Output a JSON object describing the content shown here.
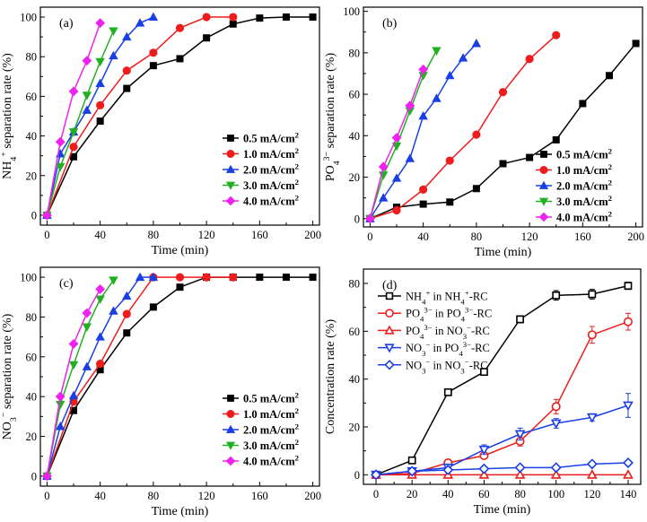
{
  "chart_data": [
    {
      "type": "line",
      "panel": "(a)",
      "xlabel": "Time (min)",
      "ylabel": {
        "pre": "NH",
        "sub": "4",
        "sup": "+",
        "post": " separation rate (%)"
      },
      "xlim": [
        -5,
        205
      ],
      "ylim": [
        -5,
        105
      ],
      "xticks": [
        0,
        40,
        80,
        120,
        160,
        200
      ],
      "yticks": [
        0,
        20,
        40,
        60,
        80,
        100
      ],
      "legend_position": "bottom-right",
      "series": [
        {
          "name": "0.5 mA/cm",
          "unit_sup": "2",
          "color": "#000000",
          "marker": "square",
          "x": [
            0,
            20,
            40,
            60,
            80,
            100,
            120,
            140,
            160,
            180,
            200
          ],
          "y": [
            0,
            29.5,
            47.5,
            64,
            75.5,
            79,
            89.5,
            96.5,
            99.5,
            100,
            100
          ]
        },
        {
          "name": "1.0 mA/cm",
          "unit_sup": "2",
          "color": "#ee1c1c",
          "marker": "circle",
          "x": [
            0,
            20,
            40,
            60,
            80,
            100,
            120,
            140
          ],
          "y": [
            0,
            34.5,
            55.5,
            73,
            82,
            94.5,
            100,
            100
          ]
        },
        {
          "name": "2.0 mA/cm",
          "unit_sup": "2",
          "color": "#1a3fe6",
          "marker": "triangle-up",
          "x": [
            0,
            10,
            20,
            30,
            40,
            50,
            60,
            70,
            80
          ],
          "y": [
            0,
            31,
            42,
            53,
            66.5,
            80.5,
            90,
            97,
            100
          ]
        },
        {
          "name": "3.0 mA/cm",
          "unit_sup": "2",
          "color": "#22b022",
          "marker": "triangle-down",
          "x": [
            0,
            10,
            20,
            30,
            40,
            50
          ],
          "y": [
            0,
            24.5,
            42,
            60.5,
            77.5,
            93
          ]
        },
        {
          "name": "4.0 mA/cm",
          "unit_sup": "2",
          "color": "#ee22ee",
          "marker": "diamond",
          "x": [
            0,
            10,
            20,
            30,
            40
          ],
          "y": [
            0,
            37,
            62.5,
            78,
            97
          ]
        }
      ]
    },
    {
      "type": "line",
      "panel": "(b)",
      "xlabel": "Time (min)",
      "ylabel": {
        "pre": "PO",
        "sub": "4",
        "sup": "3−",
        "post": " separation rate (%)"
      },
      "xlim": [
        -5,
        205
      ],
      "ylim": [
        -4,
        102
      ],
      "xticks": [
        0,
        40,
        80,
        120,
        160,
        200
      ],
      "yticks": [
        0,
        20,
        40,
        60,
        80,
        100
      ],
      "legend_position": "bottom-right",
      "series": [
        {
          "name": "0.5 mA/cm",
          "unit_sup": "2",
          "color": "#000000",
          "marker": "square",
          "x": [
            0,
            20,
            40,
            60,
            80,
            100,
            120,
            140,
            160,
            180,
            200
          ],
          "y": [
            0,
            5.5,
            7,
            8,
            14.5,
            26.5,
            29.5,
            38,
            55.5,
            69,
            84.5
          ]
        },
        {
          "name": "1.0 mA/cm",
          "unit_sup": "2",
          "color": "#ee1c1c",
          "marker": "circle",
          "x": [
            0,
            20,
            40,
            60,
            80,
            100,
            120,
            140
          ],
          "y": [
            0,
            4,
            14,
            28,
            40.5,
            61,
            77,
            88.5
          ]
        },
        {
          "name": "2.0 mA/cm",
          "unit_sup": "2",
          "color": "#1a3fe6",
          "marker": "triangle-up",
          "x": [
            0,
            10,
            20,
            30,
            40,
            50,
            60,
            70,
            80
          ],
          "y": [
            0,
            10,
            19.5,
            29,
            49.5,
            58,
            69,
            77.5,
            84.5
          ]
        },
        {
          "name": "3.0 mA/cm",
          "unit_sup": "2",
          "color": "#22b022",
          "marker": "triangle-down",
          "x": [
            0,
            10,
            20,
            30,
            40,
            50
          ],
          "y": [
            0,
            21,
            35,
            52,
            69,
            81
          ]
        },
        {
          "name": "4.0 mA/cm",
          "unit_sup": "2",
          "color": "#ee22ee",
          "marker": "diamond",
          "x": [
            0,
            10,
            20,
            30,
            40
          ],
          "y": [
            0,
            25,
            39,
            54.5,
            72
          ]
        }
      ]
    },
    {
      "type": "line",
      "panel": "(c)",
      "xlabel": "Time (min)",
      "ylabel": {
        "pre": "NO",
        "sub": "3",
        "sup": "−",
        "post": " separation rate (%)"
      },
      "xlim": [
        -5,
        205
      ],
      "ylim": [
        -5,
        105
      ],
      "xticks": [
        0,
        40,
        80,
        120,
        160,
        200
      ],
      "yticks": [
        0,
        20,
        40,
        60,
        80,
        100
      ],
      "legend_position": "bottom-right",
      "series": [
        {
          "name": "0.5 mA/cm",
          "unit_sup": "2",
          "color": "#000000",
          "marker": "square",
          "x": [
            0,
            20,
            40,
            60,
            80,
            100,
            120,
            140,
            160,
            180,
            200
          ],
          "y": [
            0,
            33,
            53.5,
            72,
            85,
            95,
            100,
            100,
            100,
            100,
            100
          ]
        },
        {
          "name": "1.0 mA/cm",
          "unit_sup": "2",
          "color": "#ee1c1c",
          "marker": "circle",
          "x": [
            0,
            20,
            40,
            60,
            80,
            100,
            120,
            140
          ],
          "y": [
            0,
            37.5,
            56.5,
            81.5,
            100,
            100,
            100,
            100
          ]
        },
        {
          "name": "2.0 mA/cm",
          "unit_sup": "2",
          "color": "#1a3fe6",
          "marker": "triangle-up",
          "x": [
            0,
            10,
            20,
            30,
            40,
            50,
            60,
            70,
            80
          ],
          "y": [
            0,
            25,
            40.5,
            55,
            70,
            83,
            90.5,
            100,
            100
          ]
        },
        {
          "name": "3.0 mA/cm",
          "unit_sup": "2",
          "color": "#22b022",
          "marker": "triangle-down",
          "x": [
            0,
            10,
            20,
            30,
            40,
            50
          ],
          "y": [
            0,
            36,
            56,
            75,
            89,
            98.5
          ]
        },
        {
          "name": "4.0 mA/cm",
          "unit_sup": "2",
          "color": "#ee22ee",
          "marker": "diamond",
          "x": [
            0,
            10,
            20,
            30,
            40
          ],
          "y": [
            0,
            40,
            66.5,
            82,
            94
          ]
        }
      ]
    },
    {
      "type": "line",
      "panel": "(d)",
      "xlabel": "Time (min)",
      "ylabel": {
        "pre": "Concentration rate (%)",
        "sub": "",
        "sup": "",
        "post": ""
      },
      "xlim": [
        -7,
        147
      ],
      "ylim": [
        -4,
        86
      ],
      "xticks": [
        0,
        20,
        40,
        60,
        80,
        100,
        120,
        140
      ],
      "yticks": [
        0,
        20,
        40,
        60,
        80
      ],
      "legend_position": "top-left",
      "open_markers": true,
      "series": [
        {
          "label_parts": [
            [
              "NH",
              ""
            ],
            [
              "4",
              "sub"
            ],
            [
              "+",
              "sup"
            ],
            [
              " in NH",
              ""
            ],
            [
              "4",
              "sub"
            ],
            [
              "+",
              "sup"
            ],
            [
              "-RC",
              ""
            ]
          ],
          "color": "#000000",
          "marker": "square",
          "x": [
            0,
            20,
            40,
            60,
            80,
            100,
            120,
            140
          ],
          "y": [
            0,
            6,
            34.5,
            43,
            65,
            75,
            75.5,
            79
          ],
          "err": [
            0,
            0.5,
            0.5,
            0.5,
            1.5,
            2,
            2,
            1.5
          ]
        },
        {
          "label_parts": [
            [
              "PO",
              ""
            ],
            [
              "4",
              "sub"
            ],
            [
              "3−",
              "sup"
            ],
            [
              " in PO",
              ""
            ],
            [
              "4",
              "sub"
            ],
            [
              "3−",
              "sup"
            ],
            [
              "-RC",
              ""
            ]
          ],
          "color": "#ee1c1c",
          "marker": "circle",
          "x": [
            0,
            20,
            40,
            60,
            80,
            100,
            120,
            140
          ],
          "y": [
            0,
            0.5,
            5,
            8,
            14,
            28.5,
            58.5,
            64
          ],
          "err": [
            0,
            0.5,
            0.5,
            1,
            2,
            3,
            3.5,
            3.5
          ]
        },
        {
          "label_parts": [
            [
              "PO",
              ""
            ],
            [
              "4",
              "sub"
            ],
            [
              "3−",
              "sup"
            ],
            [
              " in NO",
              ""
            ],
            [
              "3",
              "sub"
            ],
            [
              "−",
              "sup"
            ],
            [
              "-RC",
              ""
            ]
          ],
          "color": "#ee1c1c",
          "marker": "triangle-up",
          "x": [
            0,
            20,
            40,
            60,
            80,
            100,
            120,
            140
          ],
          "y": [
            0,
            0,
            0,
            0,
            0,
            0,
            0,
            0
          ],
          "err": [
            0,
            0,
            0,
            0,
            0,
            0,
            0,
            0
          ]
        },
        {
          "label_parts": [
            [
              "NO",
              ""
            ],
            [
              "3",
              "sub"
            ],
            [
              "−",
              "sup"
            ],
            [
              " in PO",
              ""
            ],
            [
              "4",
              "sub"
            ],
            [
              "3−",
              "sup"
            ],
            [
              "-RC",
              ""
            ]
          ],
          "color": "#1a3fe6",
          "marker": "triangle-down",
          "x": [
            0,
            20,
            40,
            60,
            80,
            100,
            120,
            140
          ],
          "y": [
            0,
            1.5,
            3,
            10.5,
            17,
            21.5,
            24,
            29
          ],
          "err": [
            0,
            0.5,
            1,
            2,
            2.5,
            2,
            1.5,
            5
          ]
        },
        {
          "label_parts": [
            [
              "NO",
              ""
            ],
            [
              "3",
              "sub"
            ],
            [
              "−",
              "sup"
            ],
            [
              " in NO",
              ""
            ],
            [
              "3",
              "sub"
            ],
            [
              "−",
              "sup"
            ],
            [
              "-RC",
              ""
            ]
          ],
          "color": "#1a3fe6",
          "marker": "diamond",
          "x": [
            0,
            20,
            40,
            60,
            80,
            100,
            120,
            140
          ],
          "y": [
            0,
            1.5,
            2,
            2.5,
            3,
            3,
            4.5,
            5
          ],
          "err": [
            0,
            0.3,
            0.3,
            0.3,
            0.3,
            0.3,
            0.3,
            0.3
          ]
        }
      ]
    }
  ]
}
